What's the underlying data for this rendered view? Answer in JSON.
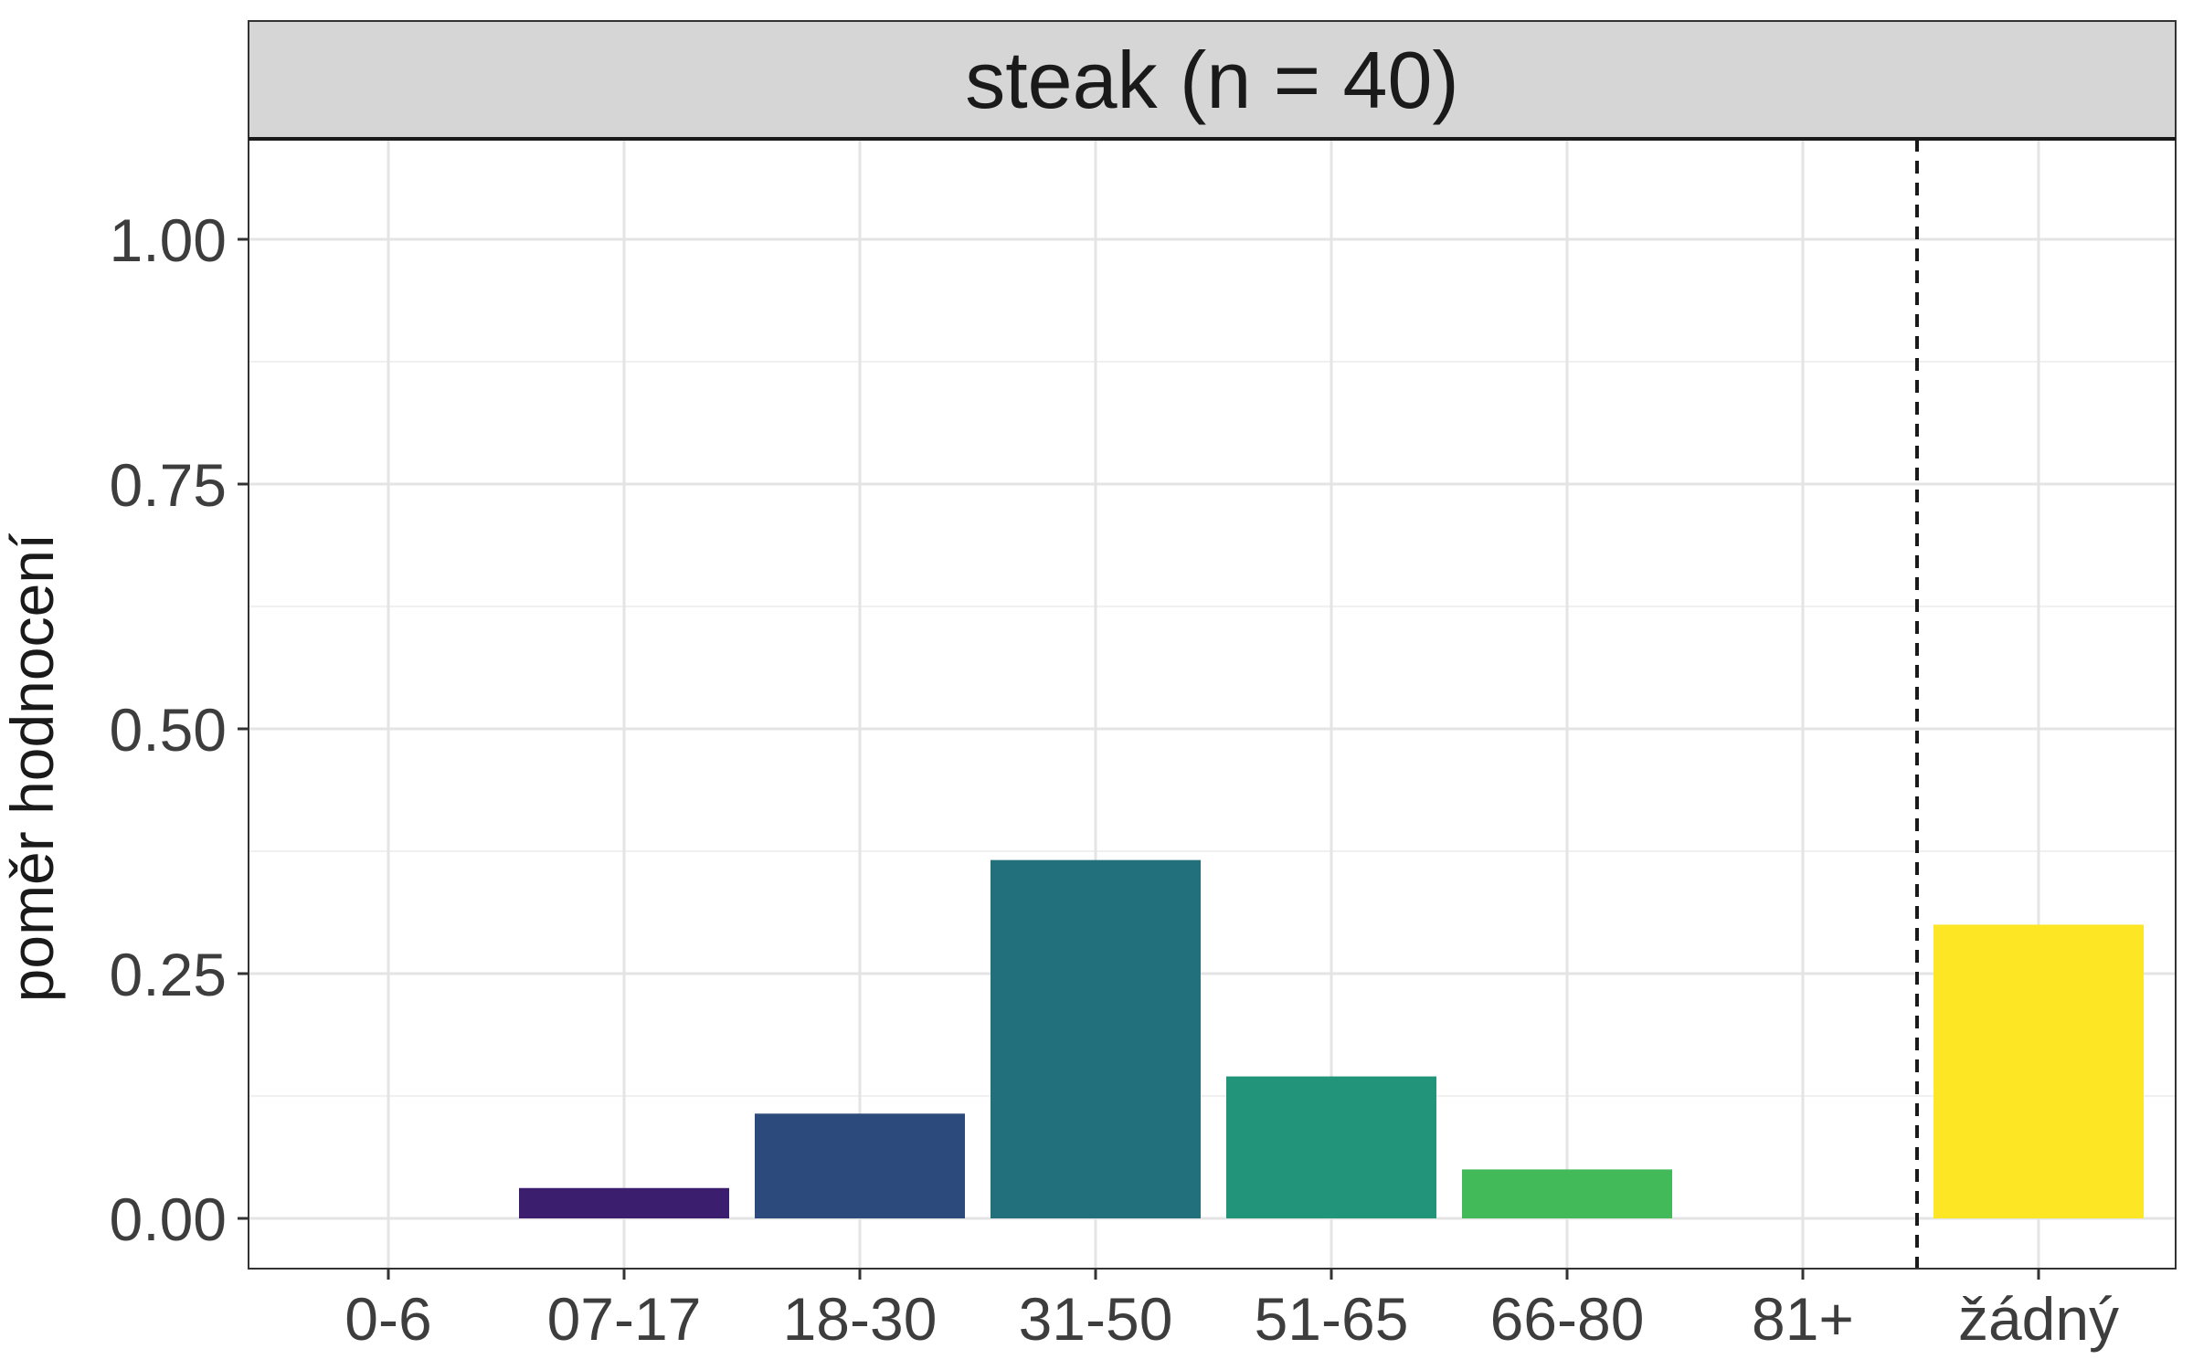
{
  "chart_data": {
    "type": "bar",
    "facet_title": "steak (n = 40)",
    "xlabel": "",
    "ylabel": "poměr hodnocení",
    "categories": [
      "0-6",
      "07-17",
      "18-30",
      "31-50",
      "51-65",
      "66-80",
      "81+",
      "žádný"
    ],
    "values": [
      0.0,
      0.031,
      0.107,
      0.366,
      0.145,
      0.05,
      0.0,
      0.3
    ],
    "colors": [
      "#440154",
      "#3b1f6e",
      "#2c4a7b",
      "#21707c",
      "#22947a",
      "#43ba5a",
      "#8fd744",
      "#fde725"
    ],
    "yticks": [
      "0.00",
      "0.25",
      "0.50",
      "0.75",
      "1.00"
    ],
    "ytick_values": [
      0,
      0.25,
      0.5,
      0.75,
      1.0
    ],
    "ylim": [
      -0.05,
      1.1
    ],
    "grid": true,
    "reference_line": {
      "style": "dashed",
      "between": [
        "81+",
        "žádný"
      ]
    },
    "legend": "none"
  }
}
